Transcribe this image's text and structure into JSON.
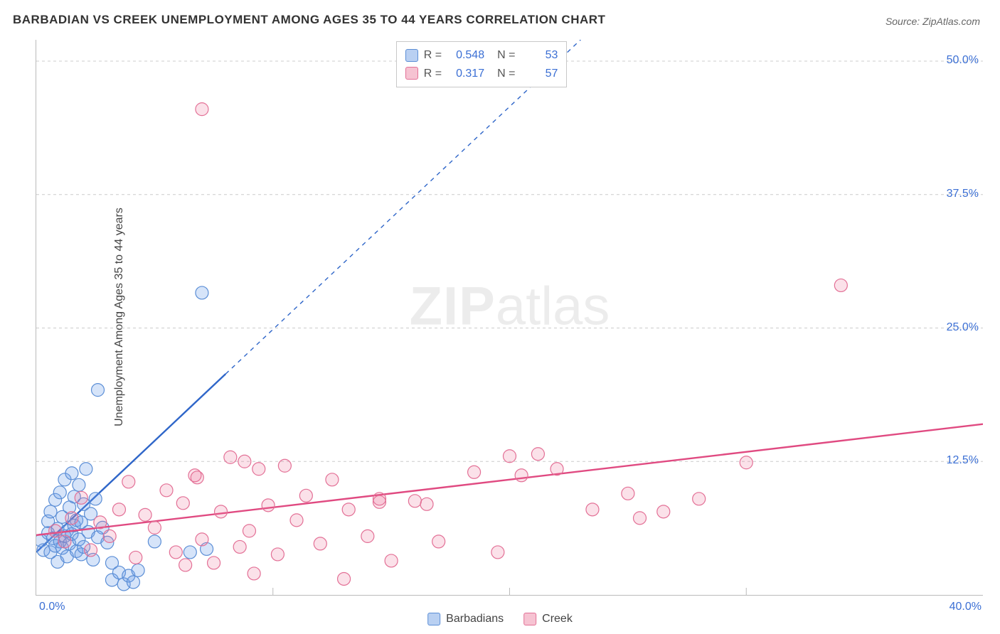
{
  "title": "BARBADIAN VS CREEK UNEMPLOYMENT AMONG AGES 35 TO 44 YEARS CORRELATION CHART",
  "source": "Source: ZipAtlas.com",
  "ylabel": "Unemployment Among Ages 35 to 44 years",
  "watermark_zip": "ZIP",
  "watermark_atlas": "atlas",
  "chart": {
    "type": "scatter",
    "xlim": [
      0,
      40
    ],
    "ylim": [
      0,
      52
    ],
    "xtick_step": 10,
    "ytick_step": 12.5,
    "xtick_labels": [
      "0.0%",
      "40.0%"
    ],
    "ytick_labels": [
      "12.5%",
      "25.0%",
      "37.5%",
      "50.0%"
    ],
    "grid_color": "#cccccc",
    "grid_dash": "4,4",
    "background_color": "#ffffff",
    "axis_color": "#bbbbbb",
    "marker_radius": 9,
    "marker_stroke_width": 1.2,
    "trend_line_width": 2.4,
    "trend_dash": "6,6",
    "series": [
      {
        "name": "Barbadians",
        "fill": "rgba(109,158,235,0.28)",
        "stroke": "#5b8ed6",
        "swatch_fill": "#b9d0f2",
        "swatch_stroke": "#5b8ed6",
        "trend_color": "#2f66c9",
        "trend": {
          "x1": 0,
          "y1": 4.0,
          "x2": 23,
          "y2": 52
        },
        "trend_solid_xmax": 8.0,
        "stats": {
          "R": "0.548",
          "N": "53"
        },
        "points": [
          [
            0.2,
            5.1
          ],
          [
            0.3,
            4.2
          ],
          [
            0.5,
            5.8
          ],
          [
            0.5,
            6.9
          ],
          [
            0.6,
            4.0
          ],
          [
            0.6,
            7.8
          ],
          [
            0.7,
            5.3
          ],
          [
            0.8,
            4.6
          ],
          [
            0.8,
            8.9
          ],
          [
            0.9,
            3.1
          ],
          [
            0.9,
            6.2
          ],
          [
            1.0,
            5.0
          ],
          [
            1.0,
            9.6
          ],
          [
            1.1,
            4.4
          ],
          [
            1.1,
            7.3
          ],
          [
            1.2,
            5.5
          ],
          [
            1.2,
            10.8
          ],
          [
            1.3,
            6.0
          ],
          [
            1.3,
            3.6
          ],
          [
            1.4,
            8.2
          ],
          [
            1.4,
            4.8
          ],
          [
            1.5,
            11.4
          ],
          [
            1.5,
            5.7
          ],
          [
            1.6,
            6.5
          ],
          [
            1.6,
            9.2
          ],
          [
            1.7,
            4.1
          ],
          [
            1.7,
            7.0
          ],
          [
            1.8,
            5.2
          ],
          [
            1.8,
            10.3
          ],
          [
            1.9,
            3.8
          ],
          [
            1.9,
            6.8
          ],
          [
            2.0,
            8.5
          ],
          [
            2.0,
            4.5
          ],
          [
            2.1,
            11.8
          ],
          [
            2.2,
            5.9
          ],
          [
            2.3,
            7.6
          ],
          [
            2.4,
            3.3
          ],
          [
            2.5,
            9.0
          ],
          [
            2.6,
            5.4
          ],
          [
            2.8,
            6.3
          ],
          [
            3.0,
            4.9
          ],
          [
            3.2,
            3.0
          ],
          [
            3.2,
            1.4
          ],
          [
            3.5,
            2.1
          ],
          [
            3.7,
            1.0
          ],
          [
            3.9,
            1.8
          ],
          [
            4.1,
            1.2
          ],
          [
            4.3,
            2.3
          ],
          [
            2.6,
            19.2
          ],
          [
            6.5,
            4.0
          ],
          [
            7.2,
            4.3
          ],
          [
            7.0,
            28.3
          ],
          [
            5.0,
            5.0
          ]
        ]
      },
      {
        "name": "Creek",
        "fill": "rgba(239,117,153,0.22)",
        "stroke": "#e37096",
        "swatch_fill": "#f6c3d2",
        "swatch_stroke": "#e37096",
        "trend_color": "#e04a81",
        "trend": {
          "x1": 0,
          "y1": 5.6,
          "x2": 40,
          "y2": 16.0
        },
        "trend_solid_xmax": 40,
        "stats": {
          "R": "0.317",
          "N": "57"
        },
        "points": [
          [
            0.8,
            6.0
          ],
          [
            1.2,
            5.0
          ],
          [
            1.5,
            7.2
          ],
          [
            1.9,
            9.1
          ],
          [
            2.3,
            4.2
          ],
          [
            2.7,
            6.8
          ],
          [
            3.1,
            5.5
          ],
          [
            3.5,
            8.0
          ],
          [
            3.9,
            10.6
          ],
          [
            4.2,
            3.5
          ],
          [
            4.6,
            7.5
          ],
          [
            5.0,
            6.3
          ],
          [
            5.5,
            9.8
          ],
          [
            5.9,
            4.0
          ],
          [
            6.2,
            8.6
          ],
          [
            6.3,
            2.8
          ],
          [
            6.7,
            11.2
          ],
          [
            7.0,
            5.2
          ],
          [
            7.5,
            3.0
          ],
          [
            7.8,
            7.8
          ],
          [
            8.2,
            12.9
          ],
          [
            8.6,
            4.5
          ],
          [
            9.0,
            6.0
          ],
          [
            9.2,
            2.0
          ],
          [
            9.4,
            11.8
          ],
          [
            9.8,
            8.4
          ],
          [
            10.2,
            3.8
          ],
          [
            10.5,
            12.1
          ],
          [
            11.0,
            7.0
          ],
          [
            11.4,
            9.3
          ],
          [
            12.0,
            4.8
          ],
          [
            12.5,
            10.8
          ],
          [
            13.0,
            1.5
          ],
          [
            13.2,
            8.0
          ],
          [
            14.0,
            5.5
          ],
          [
            14.5,
            8.7
          ],
          [
            15.0,
            3.2
          ],
          [
            16.0,
            8.8
          ],
          [
            17.0,
            5.0
          ],
          [
            18.5,
            11.5
          ],
          [
            19.5,
            4.0
          ],
          [
            20.0,
            13.0
          ],
          [
            20.5,
            11.2
          ],
          [
            22.0,
            11.8
          ],
          [
            23.5,
            8.0
          ],
          [
            25.0,
            9.5
          ],
          [
            26.5,
            7.8
          ],
          [
            28.0,
            9.0
          ],
          [
            30.0,
            12.4
          ],
          [
            34.0,
            29.0
          ],
          [
            7.0,
            45.5
          ],
          [
            14.5,
            9.0
          ],
          [
            16.5,
            8.5
          ],
          [
            6.8,
            11.0
          ],
          [
            8.8,
            12.5
          ],
          [
            21.2,
            13.2
          ],
          [
            25.5,
            7.2
          ]
        ]
      }
    ]
  },
  "bottom_legend": [
    {
      "label": "Barbadians",
      "series": 0
    },
    {
      "label": "Creek",
      "series": 1
    }
  ]
}
